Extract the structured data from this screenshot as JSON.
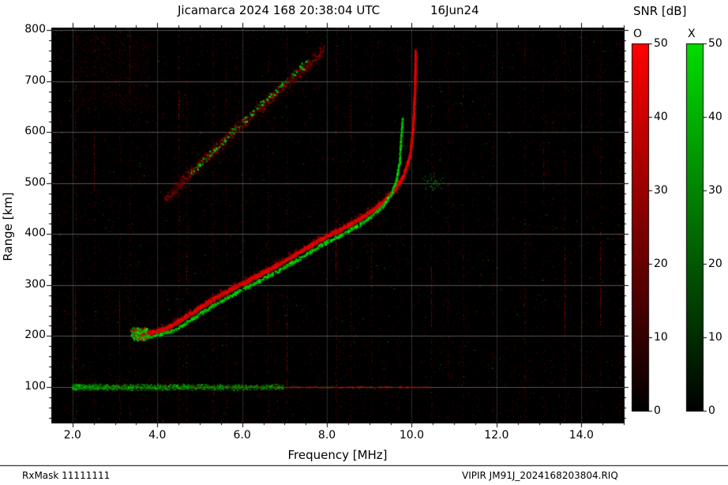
{
  "header": {
    "title": "Jicamarca 2024 168 20:38:04 UTC",
    "date": "16Jun24"
  },
  "footer": {
    "rx_mask": "RxMask 11111111",
    "file_label": "VIPIR  JM91J_2024168203804.RIQ"
  },
  "chart_data": {
    "type": "heatmap",
    "subtype": "ionogram",
    "title": "Jicamarca 2024 168 20:38:04 UTC",
    "date_label": "16Jun24",
    "xlabel": "Frequency [MHz]",
    "ylabel": "Range [km]",
    "xlim": [
      1.5,
      15.0
    ],
    "ylim": [
      30,
      805
    ],
    "x_ticks": [
      2,
      4,
      6,
      8,
      10,
      12,
      14
    ],
    "x_tick_labels": [
      "2.0",
      "4.0",
      "6.0",
      "8.0",
      "10.0",
      "12.0",
      "14.0"
    ],
    "y_ticks": [
      100,
      200,
      300,
      400,
      500,
      600,
      700,
      800
    ],
    "grid": true,
    "bg_color": "#000000",
    "colorbar": {
      "title": "SNR [dB]",
      "min": 0,
      "max": 50,
      "ticks": [
        0,
        10,
        20,
        30,
        40,
        50
      ],
      "series": [
        {
          "label": "O",
          "color": "#ff0000"
        },
        {
          "label": "X",
          "color": "#00dd00"
        }
      ]
    },
    "traces": {
      "o_main": [
        [
          3.45,
          203
        ],
        [
          3.8,
          207
        ],
        [
          4.2,
          216
        ],
        [
          4.6,
          236
        ],
        [
          5.0,
          258
        ],
        [
          5.4,
          278
        ],
        [
          5.8,
          296
        ],
        [
          6.2,
          313
        ],
        [
          6.6,
          331
        ],
        [
          7.0,
          349
        ],
        [
          7.4,
          369
        ],
        [
          7.8,
          389
        ],
        [
          8.2,
          406
        ],
        [
          8.6,
          423
        ],
        [
          9.0,
          444
        ],
        [
          9.3,
          463
        ],
        [
          9.6,
          489
        ],
        [
          9.8,
          517
        ],
        [
          9.95,
          556
        ],
        [
          10.02,
          612
        ],
        [
          10.06,
          682
        ],
        [
          10.08,
          760
        ]
      ],
      "x_main": [
        [
          3.5,
          197
        ],
        [
          3.9,
          201
        ],
        [
          4.3,
          209
        ],
        [
          4.7,
          228
        ],
        [
          5.1,
          250
        ],
        [
          5.5,
          270
        ],
        [
          5.9,
          288
        ],
        [
          6.3,
          305
        ],
        [
          6.7,
          323
        ],
        [
          7.1,
          341
        ],
        [
          7.5,
          361
        ],
        [
          7.9,
          381
        ],
        [
          8.3,
          398
        ],
        [
          8.7,
          416
        ],
        [
          9.05,
          436
        ],
        [
          9.3,
          455
        ],
        [
          9.5,
          478
        ],
        [
          9.62,
          505
        ],
        [
          9.7,
          542
        ],
        [
          9.74,
          590
        ],
        [
          9.77,
          628
        ]
      ],
      "second_hop_o": [
        [
          4.15,
          468
        ],
        [
          4.6,
          505
        ],
        [
          5.05,
          542
        ],
        [
          5.5,
          580
        ],
        [
          6.0,
          618
        ],
        [
          6.5,
          656
        ],
        [
          7.0,
          693
        ],
        [
          7.5,
          729
        ],
        [
          7.92,
          762
        ]
      ],
      "second_hop_x": [
        [
          4.75,
          518
        ],
        [
          5.15,
          550
        ],
        [
          5.55,
          584
        ],
        [
          5.95,
          616
        ],
        [
          6.35,
          648
        ],
        [
          6.75,
          680
        ],
        [
          7.15,
          711
        ],
        [
          7.55,
          741
        ]
      ],
      "e_layer": {
        "range_km": 100,
        "f_start": 2.0,
        "f_end": 10.4,
        "green_dense_f_end": 7.0
      },
      "start_blob": {
        "f": 3.55,
        "range": 205
      }
    },
    "rfi_stripes": [
      {
        "f": 2.05,
        "s": 0.45
      },
      {
        "f": 2.5,
        "s": 0.28
      },
      {
        "f": 3.1,
        "s": 0.33
      },
      {
        "f": 3.35,
        "s": 0.22
      },
      {
        "f": 4.5,
        "s": 0.42
      },
      {
        "f": 4.68,
        "s": 0.28
      },
      {
        "f": 5.3,
        "s": 0.38
      },
      {
        "f": 5.62,
        "s": 0.26
      },
      {
        "f": 6.6,
        "s": 0.32
      },
      {
        "f": 7.05,
        "s": 0.27
      },
      {
        "f": 8.2,
        "s": 0.42
      },
      {
        "f": 8.55,
        "s": 0.27
      },
      {
        "f": 9.05,
        "s": 0.28
      },
      {
        "f": 10.45,
        "s": 0.38
      },
      {
        "f": 10.85,
        "s": 0.22
      },
      {
        "f": 11.2,
        "s": 0.28
      },
      {
        "f": 11.9,
        "s": 0.18
      },
      {
        "f": 12.65,
        "s": 0.32
      },
      {
        "f": 13.1,
        "s": 0.18
      },
      {
        "f": 13.6,
        "s": 0.38
      },
      {
        "f": 14.1,
        "s": 0.22
      },
      {
        "f": 14.45,
        "s": 0.32
      },
      {
        "f": 14.9,
        "s": 0.28
      }
    ]
  }
}
